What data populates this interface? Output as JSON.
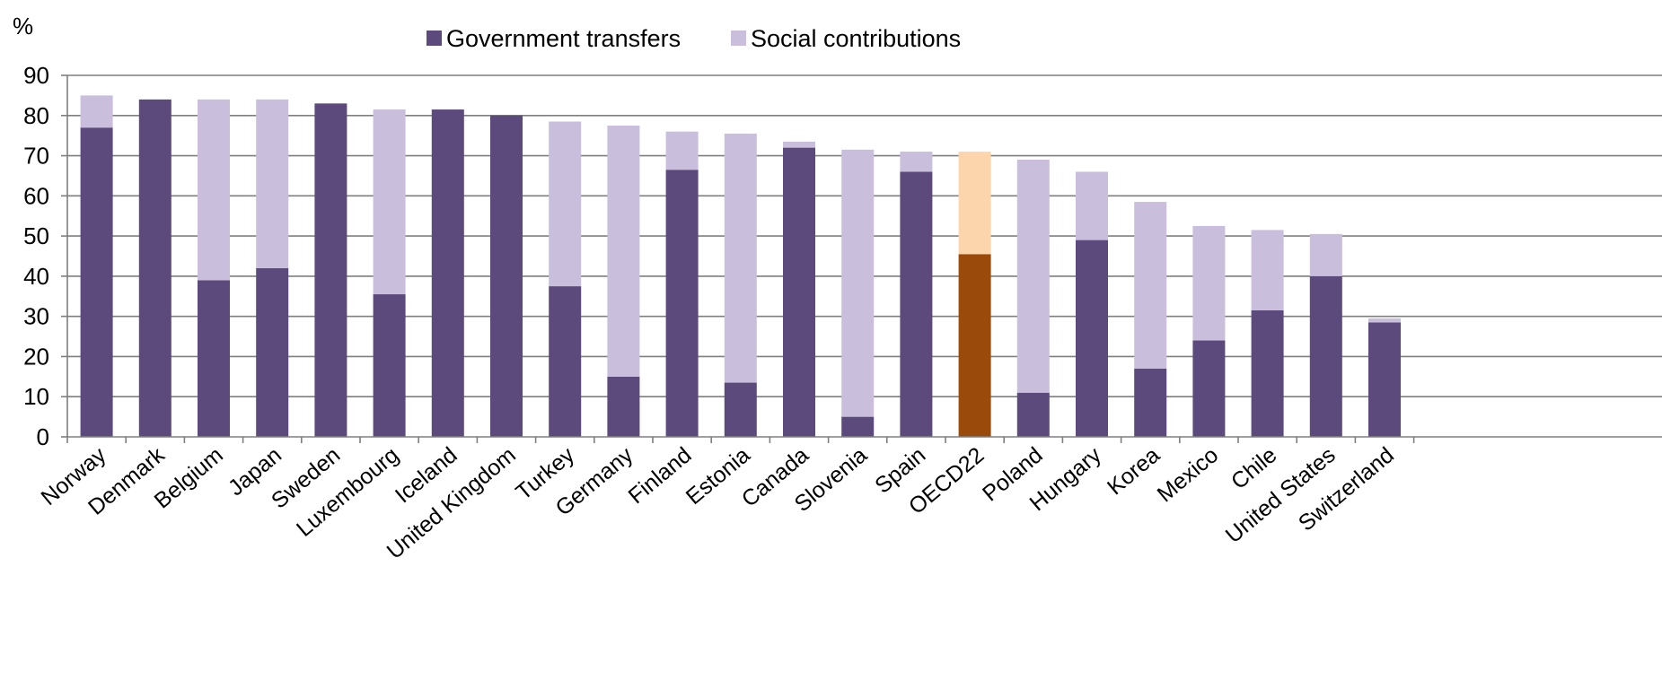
{
  "chart_data": {
    "type": "bar",
    "stacked": true,
    "y_unit_label": "%",
    "ylim": [
      0,
      90
    ],
    "yticks": [
      0,
      10,
      20,
      30,
      40,
      50,
      60,
      70,
      80,
      90
    ],
    "grid": true,
    "legend_position": "top-center",
    "categories": [
      "Norway",
      "Denmark",
      "Belgium",
      "Japan",
      "Sweden",
      "Luxembourg",
      "Iceland",
      "United Kingdom",
      "Turkey",
      "Germany",
      "Finland",
      "Estonia",
      "Canada",
      "Slovenia",
      "Spain",
      "OECD22",
      "Poland",
      "Hungary",
      "Korea",
      "Mexico",
      "Chile",
      "United States",
      "Switzerland"
    ],
    "series": [
      {
        "name": "Government transfers",
        "color": "#5c4a7c",
        "values": [
          77,
          84,
          39,
          42,
          83,
          35.5,
          81.5,
          80,
          37.5,
          15,
          66.5,
          13.5,
          72,
          5,
          66,
          45.5,
          11,
          49,
          17,
          24,
          31.5,
          40,
          28.5
        ]
      },
      {
        "name": "Social contributions",
        "color": "#c9bedc",
        "values": [
          8,
          0,
          45,
          42,
          0,
          46,
          0,
          0,
          41,
          62.5,
          9.5,
          62,
          1.5,
          66.5,
          5,
          25.5,
          58,
          17,
          41.5,
          28.5,
          20,
          10.5,
          1
        ]
      }
    ],
    "highlight": {
      "category": "OECD22",
      "colors": [
        "#9a4a0a",
        "#fdd5ad"
      ]
    }
  }
}
